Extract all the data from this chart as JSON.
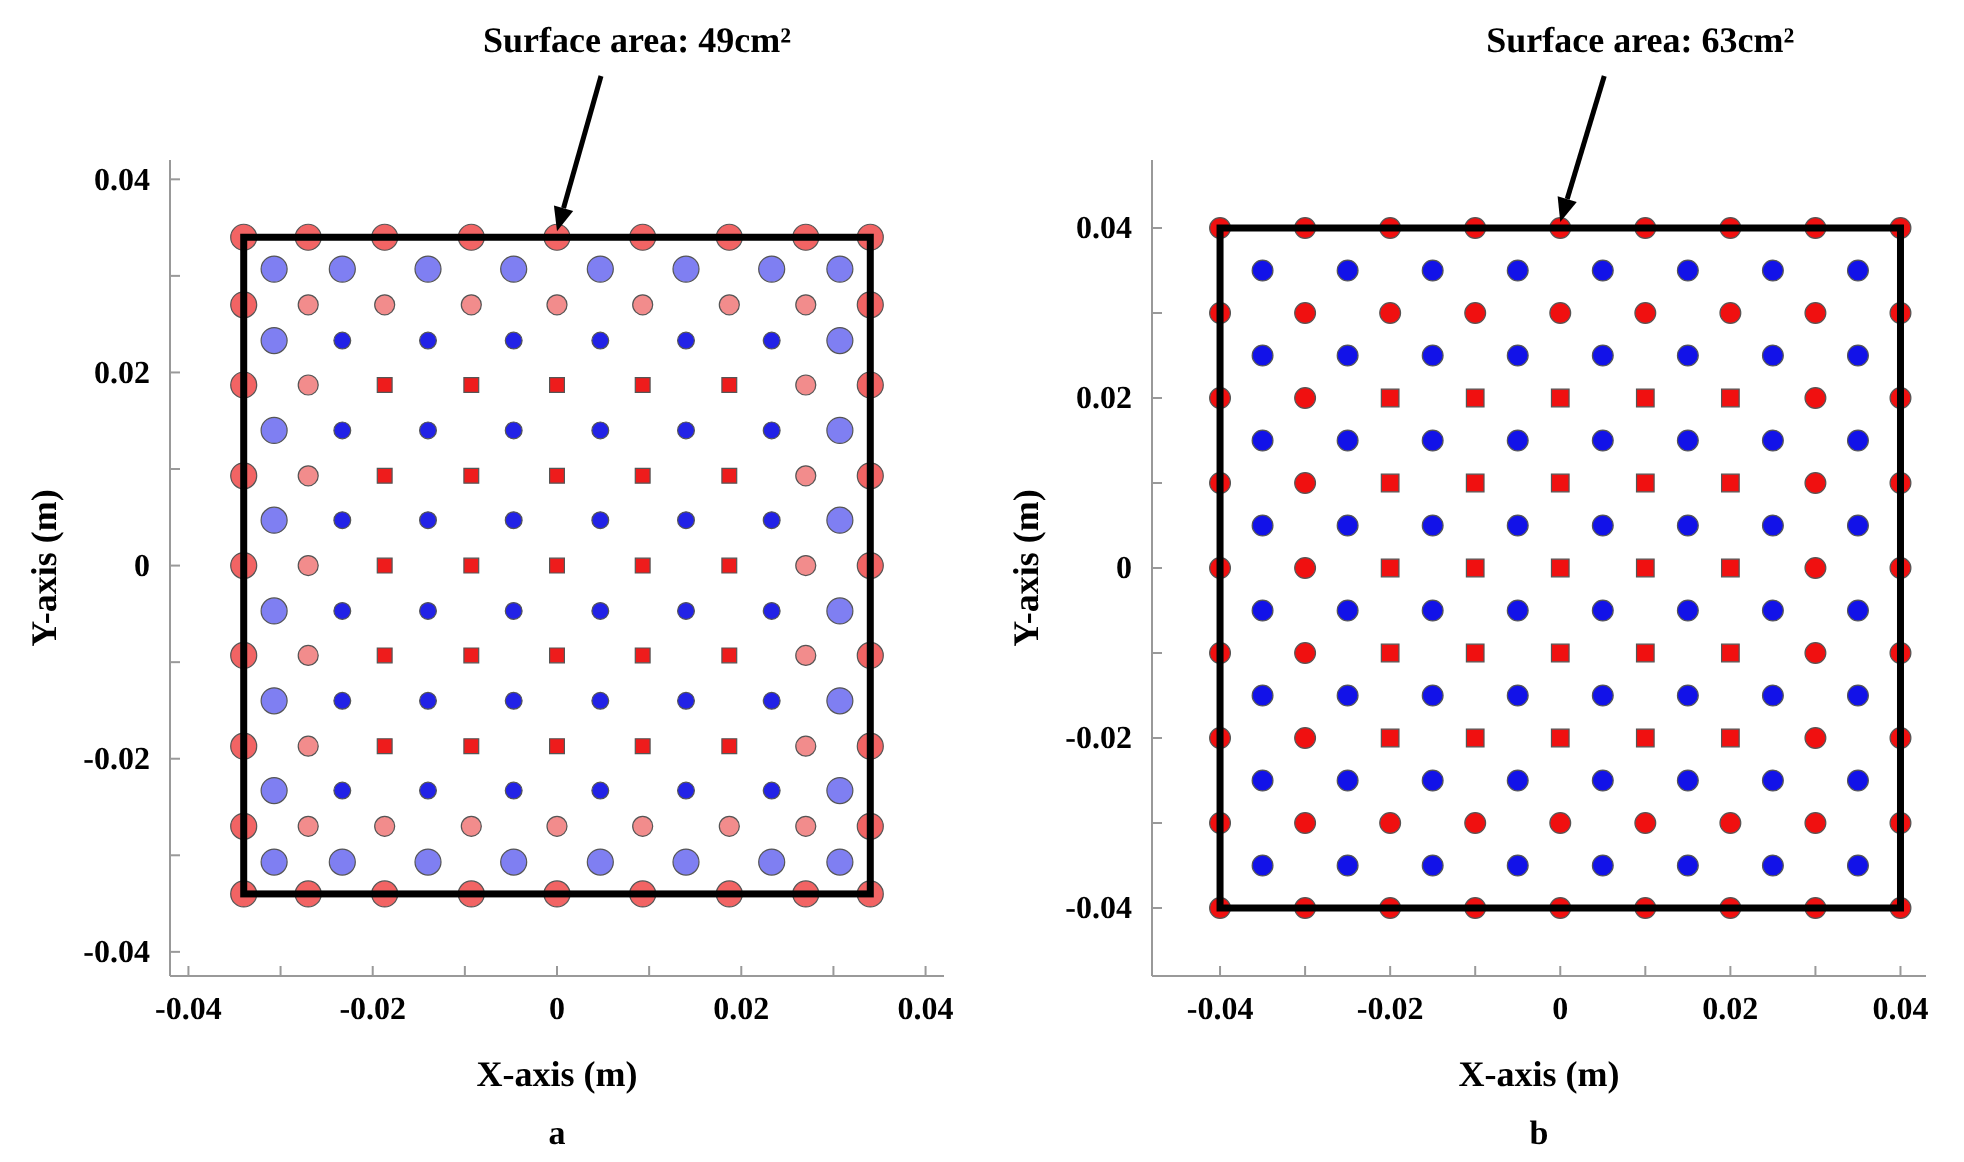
{
  "chart_data": [
    {
      "type": "scatter",
      "xlabel": "X-axis (m)",
      "ylabel": "Y-axis (m)",
      "xlim": [
        -0.042,
        0.042
      ],
      "ylim": [
        -0.0425,
        0.042
      ],
      "xticks": [
        -0.04,
        {
          "value": -0.03,
          "label": null
        },
        -0.02,
        {
          "value": -0.01,
          "label": null
        },
        0,
        {
          "value": 0.01,
          "label": null
        },
        0.02,
        {
          "value": 0.03,
          "label": null
        },
        0.04
      ],
      "yticks": [
        -0.04,
        {
          "value": -0.03,
          "label": null
        },
        -0.02,
        {
          "value": -0.01,
          "label": null
        },
        0,
        {
          "value": 0.01,
          "label": null
        },
        0.02,
        {
          "value": 0.03,
          "label": null
        },
        0.04
      ],
      "annotations": [
        "Surface area: 49cm²",
        "a"
      ],
      "series": [
        {
          "color": "#f26464",
          "marker": "circle",
          "x": [
            -0.034,
            -0.027,
            -0.0187,
            -0.0093,
            0,
            0.0093,
            0.0187,
            0.027,
            0.034,
            -0.034,
            -0.027,
            -0.0187,
            -0.0093,
            0,
            0.0093,
            0.0187,
            0.027,
            0.034,
            -0.034,
            -0.034,
            -0.034,
            -0.034,
            -0.034,
            -0.034,
            -0.034,
            0.034,
            0.034,
            0.034,
            0.034,
            0.034,
            0.034,
            0.034
          ],
          "values": [
            0.034,
            0.034,
            0.034,
            0.034,
            0.034,
            0.034,
            0.034,
            0.034,
            0.034,
            -0.034,
            -0.034,
            -0.034,
            -0.034,
            -0.034,
            -0.034,
            -0.034,
            -0.034,
            -0.034,
            0.027,
            0.0187,
            0.0093,
            0,
            -0.0093,
            -0.0187,
            -0.027,
            0.027,
            0.0187,
            0.0093,
            0,
            -0.0093,
            -0.0187,
            -0.027
          ]
        },
        {
          "color": "#f28c8c",
          "marker": "circle",
          "x": [
            -0.027,
            -0.0187,
            -0.0093,
            0,
            0.0093,
            0.0187,
            0.027,
            -0.027,
            -0.0187,
            -0.0093,
            0,
            0.0093,
            0.0187,
            0.027,
            -0.027,
            -0.027,
            -0.027,
            -0.027,
            -0.027,
            0.027,
            0.027,
            0.027,
            0.027,
            0.027
          ],
          "values": [
            0.027,
            0.027,
            0.027,
            0.027,
            0.027,
            0.027,
            0.027,
            -0.027,
            -0.027,
            -0.027,
            -0.027,
            -0.027,
            -0.027,
            -0.027,
            0.0187,
            0.0093,
            0,
            -0.0093,
            -0.0187,
            0.0187,
            0.0093,
            0,
            -0.0093,
            -0.0187
          ]
        },
        {
          "color": "#ee1c1c",
          "marker": "square",
          "x": [
            -0.0187,
            -0.0093,
            0,
            0.0093,
            0.0187,
            -0.0187,
            -0.0093,
            0,
            0.0093,
            0.0187,
            -0.0187,
            -0.0093,
            0,
            0.0093,
            0.0187,
            -0.0187,
            -0.0093,
            0,
            0.0093,
            0.0187,
            -0.0187,
            -0.0093,
            0,
            0.0093,
            0.0187
          ],
          "values": [
            0.0187,
            0.0187,
            0.0187,
            0.0187,
            0.0187,
            0.0093,
            0.0093,
            0.0093,
            0.0093,
            0.0093,
            0,
            0,
            0,
            0,
            0,
            -0.0093,
            -0.0093,
            -0.0093,
            -0.0093,
            -0.0093,
            -0.0187,
            -0.0187,
            -0.0187,
            -0.0187,
            -0.0187
          ]
        },
        {
          "color": "#7f7ff2",
          "marker": "circle",
          "x": [
            -0.0307,
            -0.0233,
            -0.014,
            -0.0047,
            0.0047,
            0.014,
            0.0233,
            0.0307,
            -0.0307,
            -0.0233,
            -0.014,
            -0.0047,
            0.0047,
            0.014,
            0.0233,
            0.0307,
            -0.0307,
            -0.0307,
            -0.0307,
            -0.0307,
            -0.0307,
            -0.0307,
            0.0307,
            0.0307,
            0.0307,
            0.0307,
            0.0307,
            0.0307
          ],
          "values": [
            0.0307,
            0.0307,
            0.0307,
            0.0307,
            0.0307,
            0.0307,
            0.0307,
            0.0307,
            -0.0307,
            -0.0307,
            -0.0307,
            -0.0307,
            -0.0307,
            -0.0307,
            -0.0307,
            -0.0307,
            0.0233,
            0.014,
            0.0047,
            -0.0047,
            -0.014,
            -0.0233,
            0.0233,
            0.014,
            0.0047,
            -0.0047,
            -0.014,
            -0.0233
          ]
        },
        {
          "color": "#2222e6",
          "marker": "circle",
          "x": [
            -0.0233,
            -0.014,
            -0.0047,
            0.0047,
            0.014,
            0.0233,
            -0.0233,
            -0.014,
            -0.0047,
            0.0047,
            0.014,
            0.0233,
            -0.0233,
            -0.014,
            -0.0047,
            0.0047,
            0.014,
            0.0233,
            -0.0233,
            -0.014,
            -0.0047,
            0.0047,
            0.014,
            0.0233,
            -0.0233,
            -0.014,
            -0.0047,
            0.0047,
            0.014,
            0.0233,
            -0.0233,
            -0.014,
            -0.0047,
            0.0047,
            0.014,
            0.0233
          ],
          "values": [
            0.0233,
            0.0233,
            0.0233,
            0.0233,
            0.0233,
            0.0233,
            0.014,
            0.014,
            0.014,
            0.014,
            0.014,
            0.014,
            0.0047,
            0.0047,
            0.0047,
            0.0047,
            0.0047,
            0.0047,
            -0.0047,
            -0.0047,
            -0.0047,
            -0.0047,
            -0.0047,
            -0.0047,
            -0.014,
            -0.014,
            -0.014,
            -0.014,
            -0.014,
            -0.014,
            -0.0233,
            -0.0233,
            -0.0233,
            -0.0233,
            -0.0233,
            -0.0233
          ]
        }
      ]
    },
    {
      "type": "scatter",
      "xlabel": "X-axis (m)",
      "ylabel": "Y-axis (m)",
      "xlim": [
        -0.048,
        0.043
      ],
      "ylim": [
        -0.048,
        0.048
      ],
      "xticks": [
        -0.04,
        {
          "value": -0.03,
          "label": null
        },
        -0.02,
        {
          "value": -0.01,
          "label": null
        },
        0,
        {
          "value": 0.01,
          "label": null
        },
        0.02,
        {
          "value": 0.03,
          "label": null
        },
        0.04
      ],
      "yticks": [
        -0.04,
        {
          "value": -0.03,
          "label": null
        },
        -0.02,
        {
          "value": -0.01,
          "label": null
        },
        0,
        {
          "value": 0.01,
          "label": null
        },
        0.02,
        {
          "value": 0.03,
          "label": null
        },
        0.04
      ],
      "annotations": [
        "Surface area: 63cm²",
        "b"
      ],
      "series": [
        {
          "color": "#f01010",
          "marker": "circle",
          "x": [
            -0.04,
            -0.03,
            -0.02,
            -0.01,
            0,
            0.01,
            0.02,
            0.03,
            0.04,
            -0.04,
            -0.03,
            -0.02,
            -0.01,
            0,
            0.01,
            0.02,
            0.03,
            0.04,
            -0.04,
            -0.03,
            0.03,
            0.04,
            -0.04,
            -0.03,
            0.03,
            0.04,
            -0.04,
            -0.03,
            0.03,
            0.04,
            -0.04,
            -0.03,
            0.03,
            0.04,
            -0.04,
            -0.03,
            0.03,
            0.04,
            -0.04,
            -0.03,
            -0.02,
            -0.01,
            0,
            0.01,
            0.02,
            0.03,
            0.04,
            -0.04,
            -0.03,
            -0.02,
            -0.01,
            0,
            0.01,
            0.02,
            0.03,
            0.04
          ],
          "values": [
            0.04,
            0.04,
            0.04,
            0.04,
            0.04,
            0.04,
            0.04,
            0.04,
            0.04,
            0.03,
            0.03,
            0.03,
            0.03,
            0.03,
            0.03,
            0.03,
            0.03,
            0.03,
            0.02,
            0.02,
            0.02,
            0.02,
            0.01,
            0.01,
            0.01,
            0.01,
            0,
            0,
            0,
            0,
            -0.01,
            -0.01,
            -0.01,
            -0.01,
            -0.02,
            -0.02,
            -0.02,
            -0.02,
            -0.03,
            -0.03,
            -0.03,
            -0.03,
            -0.03,
            -0.03,
            -0.03,
            -0.03,
            -0.03,
            -0.04,
            -0.04,
            -0.04,
            -0.04,
            -0.04,
            -0.04,
            -0.04,
            -0.04,
            -0.04
          ]
        },
        {
          "color": "#f01010",
          "marker": "square",
          "x": [
            -0.02,
            -0.01,
            0,
            0.01,
            0.02,
            -0.02,
            -0.01,
            0,
            0.01,
            0.02,
            -0.02,
            -0.01,
            0,
            0.01,
            0.02,
            -0.02,
            -0.01,
            0,
            0.01,
            0.02,
            -0.02,
            -0.01,
            0,
            0.01,
            0.02
          ],
          "values": [
            0.02,
            0.02,
            0.02,
            0.02,
            0.02,
            0.01,
            0.01,
            0.01,
            0.01,
            0.01,
            0,
            0,
            0,
            0,
            0,
            -0.01,
            -0.01,
            -0.01,
            -0.01,
            -0.01,
            -0.02,
            -0.02,
            -0.02,
            -0.02,
            -0.02
          ]
        },
        {
          "color": "#1212e8",
          "marker": "circle",
          "x": [
            -0.035,
            -0.025,
            -0.015,
            -0.005,
            0.005,
            0.015,
            0.025,
            0.035,
            -0.035,
            -0.025,
            -0.015,
            -0.005,
            0.005,
            0.015,
            0.025,
            0.035,
            -0.035,
            -0.025,
            -0.015,
            -0.005,
            0.005,
            0.015,
            0.025,
            0.035,
            -0.035,
            -0.025,
            -0.015,
            -0.005,
            0.005,
            0.015,
            0.025,
            0.035,
            -0.035,
            -0.025,
            -0.015,
            -0.005,
            0.005,
            0.015,
            0.025,
            0.035,
            -0.035,
            -0.025,
            -0.015,
            -0.005,
            0.005,
            0.015,
            0.025,
            0.035,
            -0.035,
            -0.025,
            -0.015,
            -0.005,
            0.005,
            0.015,
            0.025,
            0.035,
            -0.035,
            -0.025,
            -0.015,
            -0.005,
            0.005,
            0.015,
            0.025,
            0.035
          ],
          "values": [
            0.035,
            0.035,
            0.035,
            0.035,
            0.035,
            0.035,
            0.035,
            0.035,
            0.025,
            0.025,
            0.025,
            0.025,
            0.025,
            0.025,
            0.025,
            0.025,
            0.015,
            0.015,
            0.015,
            0.015,
            0.015,
            0.015,
            0.015,
            0.015,
            0.005,
            0.005,
            0.005,
            0.005,
            0.005,
            0.005,
            0.005,
            0.005,
            -0.005,
            -0.005,
            -0.005,
            -0.005,
            -0.005,
            -0.005,
            -0.005,
            -0.005,
            -0.015,
            -0.015,
            -0.015,
            -0.015,
            -0.015,
            -0.015,
            -0.015,
            -0.015,
            -0.025,
            -0.025,
            -0.025,
            -0.025,
            -0.025,
            -0.025,
            -0.025,
            -0.025,
            -0.035,
            -0.035,
            -0.035,
            -0.035,
            -0.035,
            -0.035,
            -0.035,
            -0.035
          ]
        }
      ]
    }
  ]
}
